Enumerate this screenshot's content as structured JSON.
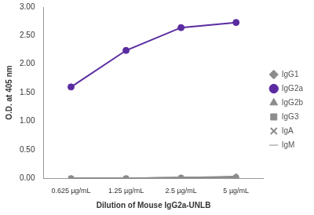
{
  "chart_data": {
    "type": "line",
    "x_label": "Dilution of Mouse IgG2a-UNLB",
    "y_label": "O.D. at 405 nm",
    "categories": [
      "0.625 µg/mL",
      "1.25 µg/mL",
      "2.5 µg/mL",
      "5 µg/mL"
    ],
    "series": [
      {
        "name": "IgG1",
        "color": "#8c8c8c",
        "marker": "diamond",
        "values": [
          0,
          0,
          0.01,
          0.02
        ]
      },
      {
        "name": "IgG2a",
        "color": "#5a2ca0",
        "marker": "circle",
        "values": [
          1.6,
          2.24,
          2.64,
          2.73
        ]
      },
      {
        "name": "IgG2b",
        "color": "#8c8c8c",
        "marker": "triangle",
        "values": [
          0,
          0,
          0.01,
          0.03
        ]
      },
      {
        "name": "IgG3",
        "color": "#8c8c8c",
        "marker": "square",
        "values": [
          0,
          0,
          0.01,
          0.02
        ]
      },
      {
        "name": "IgA",
        "color": "#8c8c8c",
        "marker": "x",
        "values": [
          0,
          0,
          0,
          0.01
        ]
      },
      {
        "name": "IgM",
        "color": "#8c8c8c",
        "marker": "line",
        "values": [
          0,
          0,
          0.01,
          0.02
        ]
      }
    ],
    "ylim": [
      0,
      3
    ],
    "yticks": [
      {
        "value": 0,
        "label": "0.00"
      },
      {
        "value": 0.5,
        "label": "0.50"
      },
      {
        "value": 1,
        "label": "1.00"
      },
      {
        "value": 1.5,
        "label": "1.50"
      },
      {
        "value": 2,
        "label": "2.00"
      },
      {
        "value": 2.5,
        "label": "2.50"
      },
      {
        "value": 3,
        "label": "3.00"
      }
    ],
    "grid": false,
    "legend": "right"
  }
}
